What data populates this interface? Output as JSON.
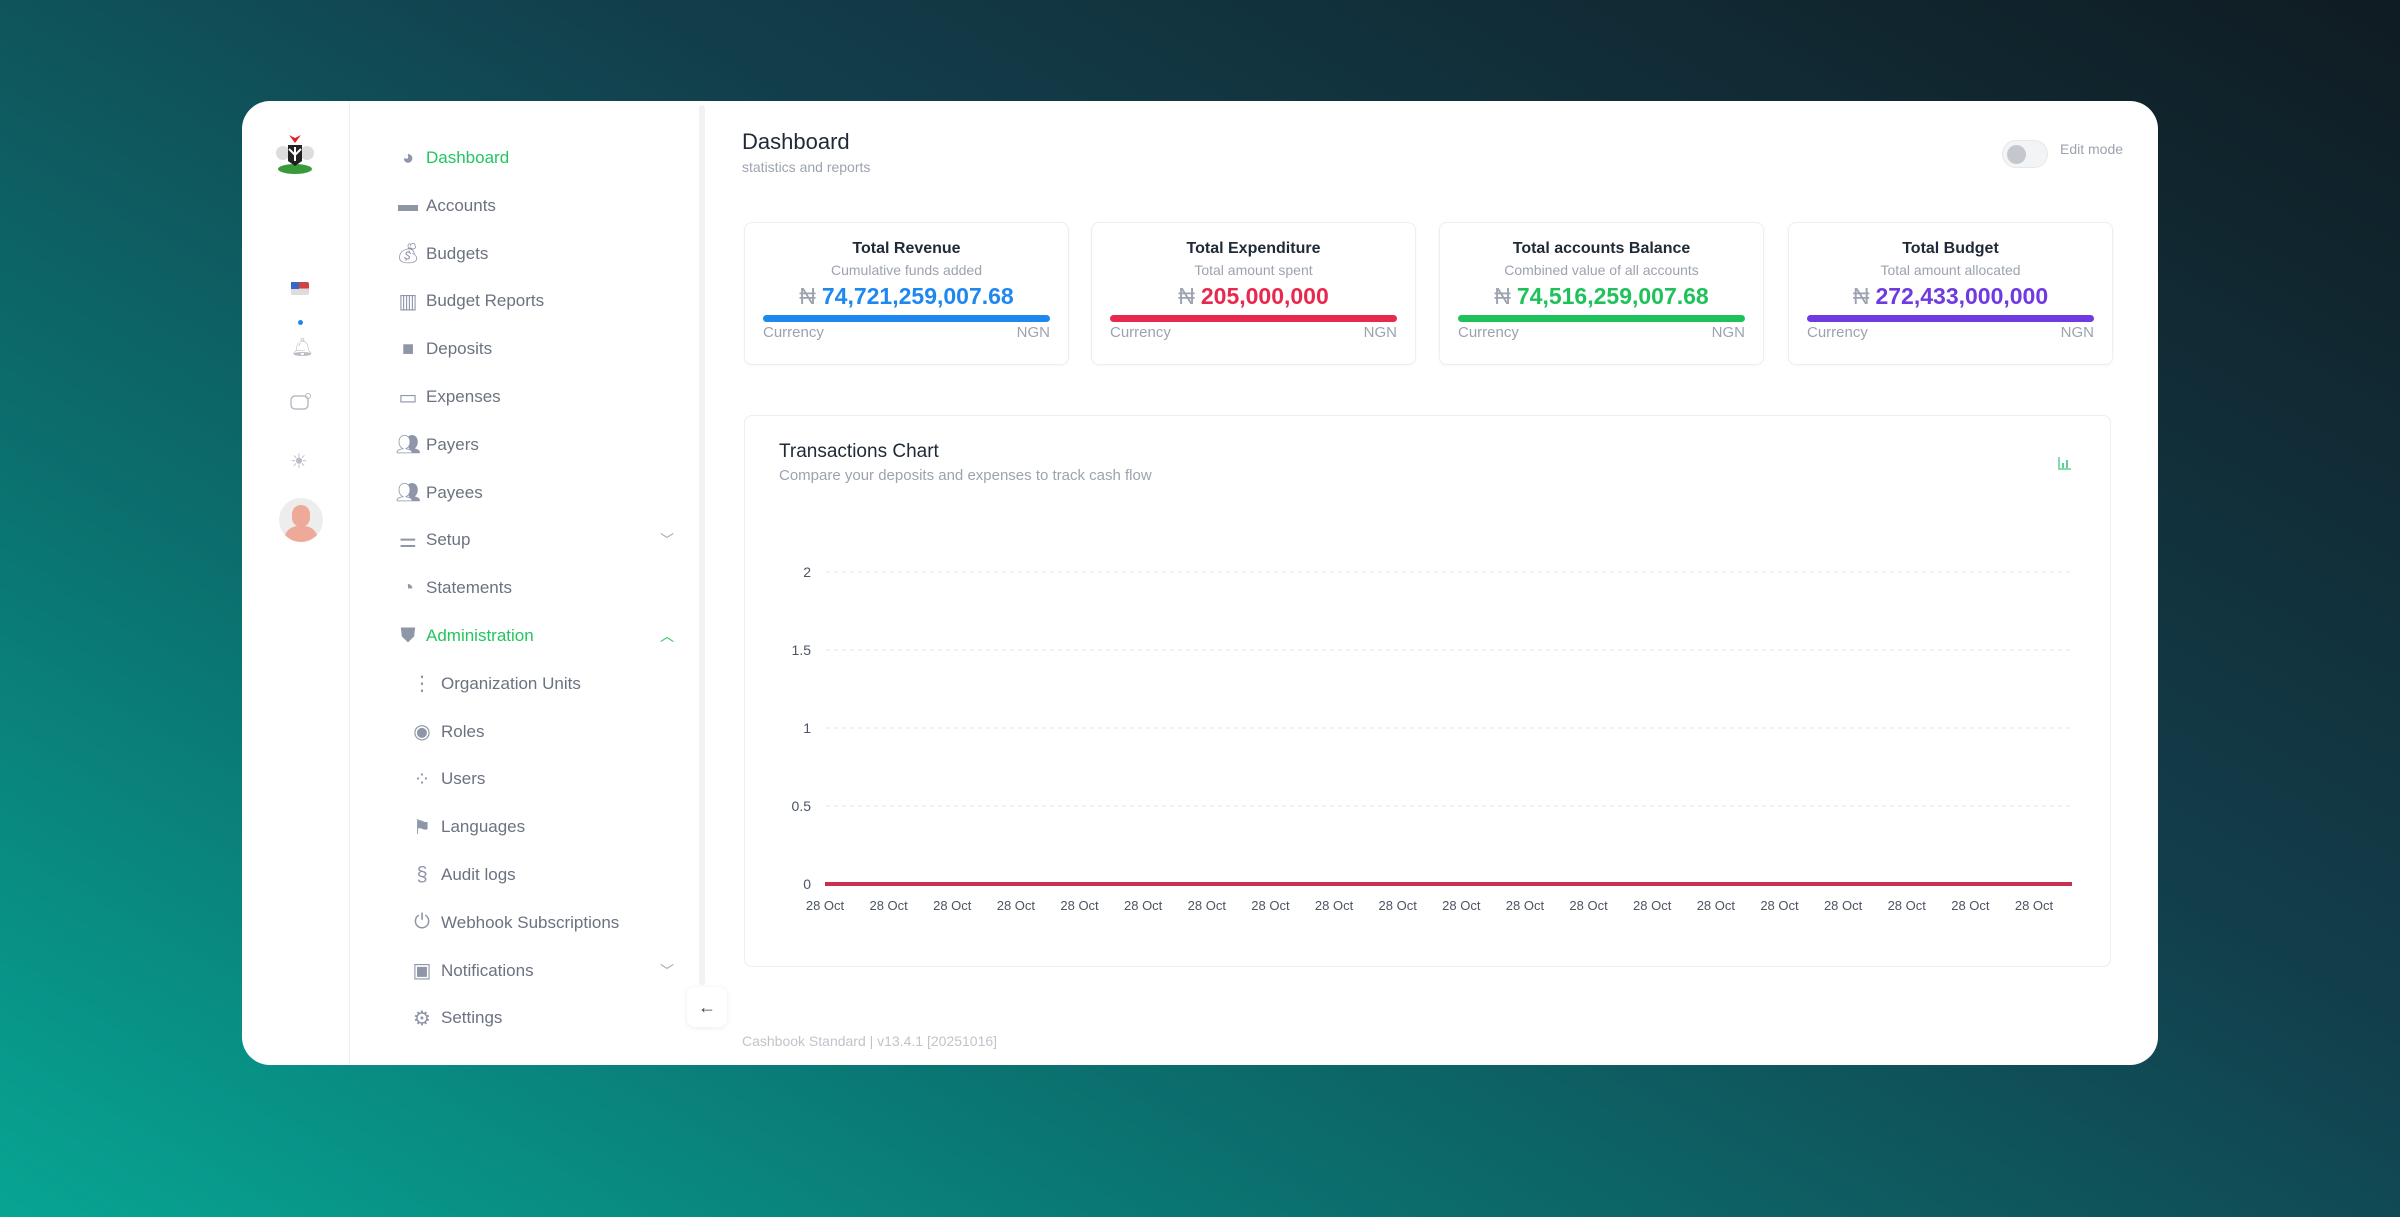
{
  "nav": {
    "items": [
      {
        "label": "Dashboard",
        "icon": "pie-chart-icon",
        "active": true
      },
      {
        "label": "Accounts",
        "icon": "wallet-icon"
      },
      {
        "label": "Budgets",
        "icon": "money-bag-icon"
      },
      {
        "label": "Budget Reports",
        "icon": "bar-chart-icon"
      },
      {
        "label": "Deposits",
        "icon": "safe-icon"
      },
      {
        "label": "Expenses",
        "icon": "credit-card-icon"
      },
      {
        "label": "Payers",
        "icon": "users-icon"
      },
      {
        "label": "Payees",
        "icon": "users-icon"
      },
      {
        "label": "Setup",
        "icon": "sliders-icon",
        "chevron": "down"
      },
      {
        "label": "Statements",
        "icon": "statement-icon"
      },
      {
        "label": "Administration",
        "icon": "shield-check-icon",
        "chevron": "up",
        "active": true
      },
      {
        "label": "Organization Units",
        "icon": "tree-icon",
        "sub": true
      },
      {
        "label": "Roles",
        "icon": "role-icon",
        "sub": true
      },
      {
        "label": "Users",
        "icon": "users-group-icon",
        "sub": true
      },
      {
        "label": "Languages",
        "icon": "flag-icon",
        "sub": true
      },
      {
        "label": "Audit logs",
        "icon": "scroll-icon",
        "sub": true
      },
      {
        "label": "Webhook Subscriptions",
        "icon": "plug-icon",
        "sub": true
      },
      {
        "label": "Notifications",
        "icon": "notification-icon",
        "sub": true,
        "chevron": "down"
      },
      {
        "label": "Settings",
        "icon": "gear-icon",
        "sub": true
      }
    ]
  },
  "header": {
    "title": "Dashboard",
    "subtitle": "statistics and reports",
    "edit_mode_label": "Edit mode",
    "edit_mode_on": false
  },
  "stats": [
    {
      "title": "Total Revenue",
      "subtitle": "Cumulative funds added",
      "symbol": "₦",
      "value": "74,721,259,007.68",
      "color": "#1e88f0",
      "currency_label": "Currency",
      "currency": "NGN"
    },
    {
      "title": "Total Expenditure",
      "subtitle": "Total amount spent",
      "symbol": "₦",
      "value": "205,000,000",
      "color": "#e8294f",
      "currency_label": "Currency",
      "currency": "NGN"
    },
    {
      "title": "Total accounts Balance",
      "subtitle": "Combined value of all accounts",
      "symbol": "₦",
      "value": "74,516,259,007.68",
      "color": "#1fc25a",
      "currency_label": "Currency",
      "currency": "NGN"
    },
    {
      "title": "Total Budget",
      "subtitle": "Total amount allocated",
      "symbol": "₦",
      "value": "272,433,000,000",
      "color": "#6f3be0",
      "currency_label": "Currency",
      "currency": "NGN"
    }
  ],
  "chart_data": {
    "type": "line",
    "title": "Transactions Chart",
    "subtitle": "Compare your deposits and expenses to track cash flow",
    "x": [
      "28 Oct",
      "28 Oct",
      "28 Oct",
      "28 Oct",
      "28 Oct",
      "28 Oct",
      "28 Oct",
      "28 Oct",
      "28 Oct",
      "28 Oct",
      "28 Oct",
      "28 Oct",
      "28 Oct",
      "28 Oct",
      "28 Oct",
      "28 Oct",
      "28 Oct",
      "28 Oct",
      "28 Oct",
      "28 Oct"
    ],
    "series": [
      {
        "values": [
          0,
          0,
          0,
          0,
          0,
          0,
          0,
          0,
          0,
          0,
          0,
          0,
          0,
          0,
          0,
          0,
          0,
          0,
          0,
          0
        ],
        "color": "#c9304f"
      }
    ],
    "yticks": [
      "0",
      "0.5",
      "1",
      "1.5",
      "2"
    ],
    "ylim": [
      0,
      2
    ],
    "grid": true
  },
  "footer": "Cashbook Standard | v13.4.1 [20251016]"
}
